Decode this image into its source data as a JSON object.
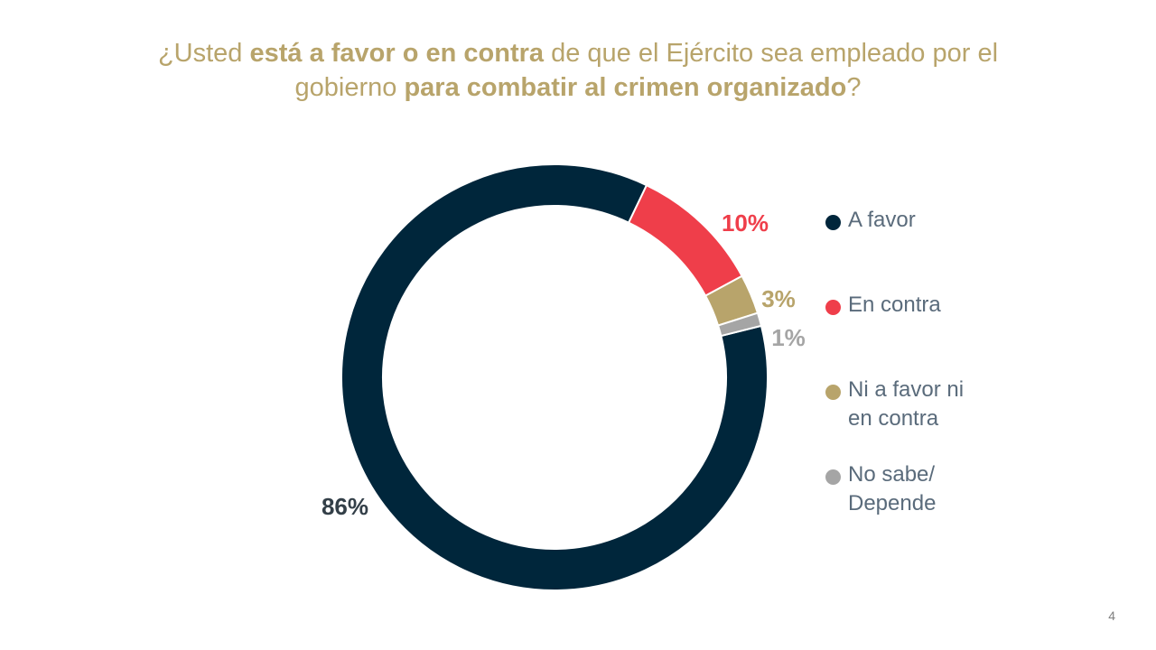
{
  "slide": {
    "title_parts": [
      {
        "text": "¿Usted ",
        "bold": false
      },
      {
        "text": "está a favor o en contra",
        "bold": true
      },
      {
        "text": " de que el Ejército sea empleado por el gobierno ",
        "bold": false
      },
      {
        "text": "para combatir al crimen organizado",
        "bold": true
      },
      {
        "text": "?",
        "bold": false
      }
    ],
    "page_number": "4"
  },
  "chart_data": {
    "type": "pie",
    "donut": true,
    "categories": [
      "A favor",
      "En contra",
      "Ni a favor ni en contra",
      "No sabe/ Depende"
    ],
    "values": [
      86,
      10,
      3,
      1
    ],
    "data_labels": [
      "86%",
      "10%",
      "3%",
      "1%"
    ],
    "colors": [
      "#00263b",
      "#ef3e4a",
      "#b8a46b",
      "#a5a5a5"
    ],
    "label_colors": [
      "#333f48",
      "#ef3e4a",
      "#b8a46b",
      "#a5a5a5"
    ],
    "legend": {
      "placement": "right",
      "items": [
        "A favor",
        "En contra",
        "Ni a favor ni en contra",
        "No sabe/ Depende"
      ]
    }
  }
}
